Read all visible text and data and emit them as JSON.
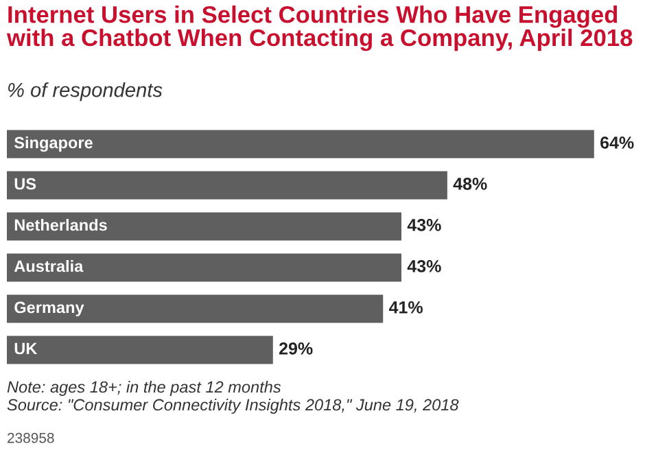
{
  "chart_data": {
    "type": "bar",
    "orientation": "horizontal",
    "title": "Internet Users in Select Countries Who Have Engaged with a Chatbot When Contacting a Company, April 2018",
    "subtitle": "% of respondents",
    "categories": [
      "Singapore",
      "US",
      "Netherlands",
      "Australia",
      "Germany",
      "UK"
    ],
    "values": [
      64,
      48,
      43,
      43,
      41,
      29
    ],
    "value_labels": [
      "64%",
      "48%",
      "43%",
      "43%",
      "41%",
      "29%"
    ],
    "color": "#5f5f5f",
    "annotations": [
      "Note: ages 18+; in the past 12 months",
      "Source: \"Consumer Connectivity Insights 2018,\" June 19, 2018",
      "238958"
    ]
  }
}
